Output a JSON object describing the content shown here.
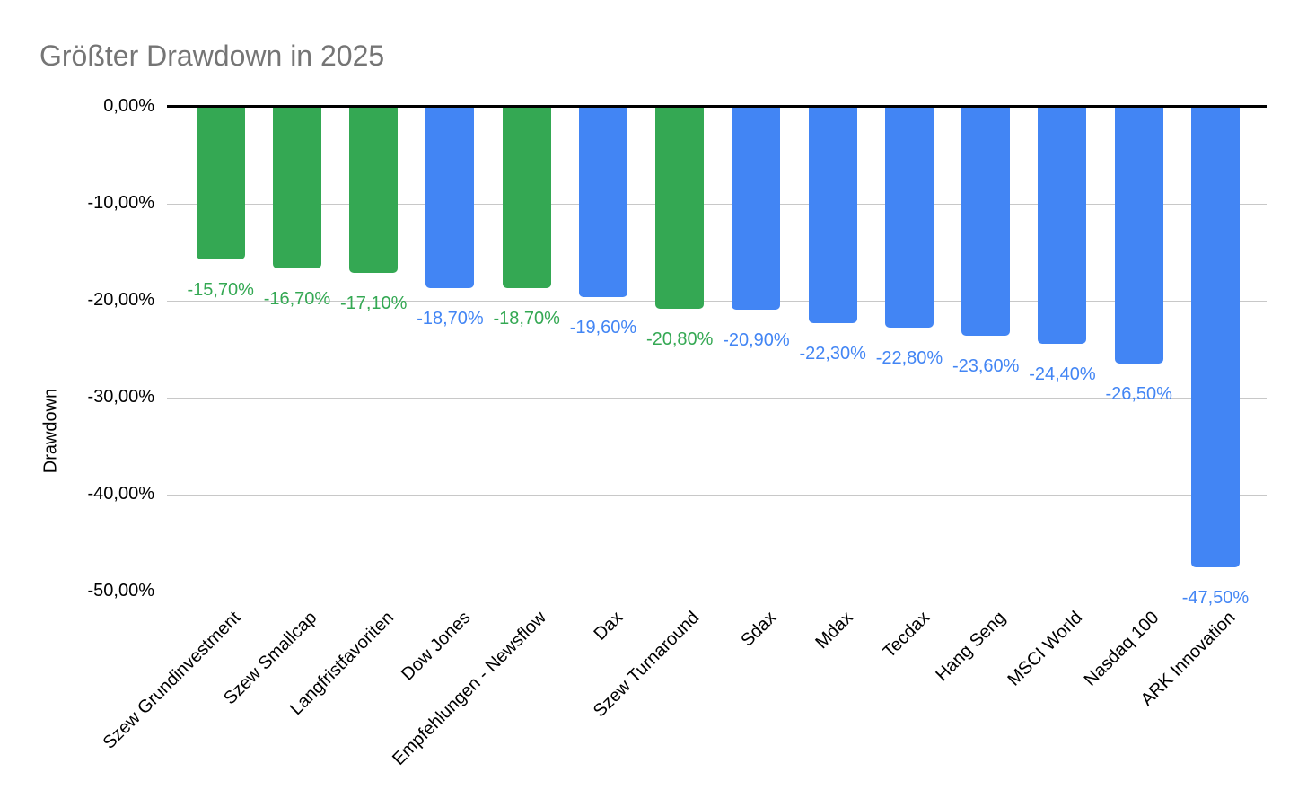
{
  "chart": {
    "title": "Größter Drawdown in 2025",
    "y_axis_title": "Drawdown"
  },
  "chart_data": {
    "type": "bar",
    "orientation": "vertical",
    "title": "Größter Drawdown in 2025",
    "xlabel": "",
    "ylabel": "Drawdown",
    "ylim": [
      -50,
      0
    ],
    "grid": true,
    "legend": false,
    "value_format": "german_percent",
    "y_tick_labels": [
      "0,00%",
      "-10,00%",
      "-20,00%",
      "-30,00%",
      "-40,00%",
      "-50,00%"
    ],
    "colors": {
      "green": "#34a853",
      "blue": "#4285f4"
    },
    "points": [
      {
        "category": "Szew Grundinvestment",
        "value": -15.7,
        "label": "-15,70%",
        "color": "green"
      },
      {
        "category": "Szew Smallcap",
        "value": -16.7,
        "label": "-16,70%",
        "color": "green"
      },
      {
        "category": "Langfristfavoriten",
        "value": -17.1,
        "label": "-17,10%",
        "color": "green"
      },
      {
        "category": "Dow Jones",
        "value": -18.7,
        "label": "-18,70%",
        "color": "blue"
      },
      {
        "category": "Empfehlungen - Newsflow",
        "value": -18.7,
        "label": "-18,70%",
        "color": "green"
      },
      {
        "category": "Dax",
        "value": -19.6,
        "label": "-19,60%",
        "color": "blue"
      },
      {
        "category": "Szew Turnaround",
        "value": -20.8,
        "label": "-20,80%",
        "color": "green"
      },
      {
        "category": "Sdax",
        "value": -20.9,
        "label": "-20,90%",
        "color": "blue"
      },
      {
        "category": "Mdax",
        "value": -22.3,
        "label": "-22,30%",
        "color": "blue"
      },
      {
        "category": "Tecdax",
        "value": -22.8,
        "label": "-22,80%",
        "color": "blue"
      },
      {
        "category": "Hang Seng",
        "value": -23.6,
        "label": "-23,60%",
        "color": "blue"
      },
      {
        "category": "MSCI World",
        "value": -24.4,
        "label": "-24,40%",
        "color": "blue"
      },
      {
        "category": "Nasdaq 100",
        "value": -26.5,
        "label": "-26,50%",
        "color": "blue"
      },
      {
        "category": "ARK Innovation",
        "value": -47.5,
        "label": "-47,50%",
        "color": "blue"
      }
    ]
  }
}
